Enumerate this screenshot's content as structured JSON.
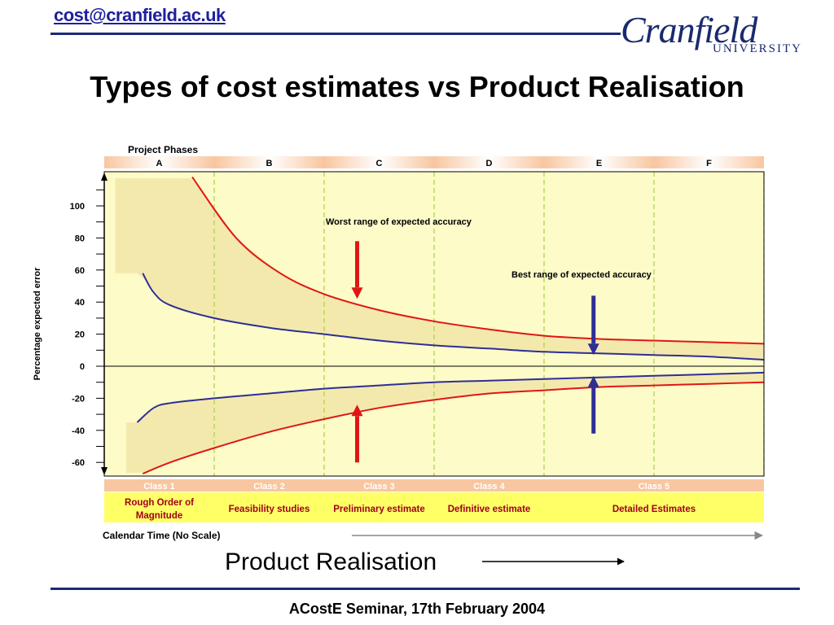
{
  "header": {
    "email": "cost@cranfield.ac.uk",
    "title": "Types of cost estimates vs Product Realisation",
    "logo_word": "Cranfield",
    "logo_sub": "UNIVERSITY"
  },
  "footer": {
    "text": "ACostE Seminar, 17th February 2004"
  },
  "product_realisation": "Product Realisation",
  "colors": {
    "brand_blue": "#1a2a7a",
    "email_blue": "#1f1f9e",
    "plot_bg": "#fdfbc8",
    "band": "#f4e9ad",
    "worst": "#e01616",
    "best": "#2e2e96",
    "phase_bar": "#f8c6a0",
    "class_bar": "#f8c6a0",
    "class_label_red": "#a0001a"
  },
  "chart_data": {
    "type": "line",
    "phases_title": "Project Phases",
    "phases": [
      "A",
      "B",
      "C",
      "D",
      "E",
      "F"
    ],
    "ylabel": "Percentage expected error",
    "xlabel": "Calendar Time (No Scale)",
    "yticks": [
      100,
      80,
      60,
      40,
      20,
      0,
      -20,
      -40,
      -60
    ],
    "ylim": [
      -68,
      118
    ],
    "xlim": [
      0,
      6
    ],
    "grid": false,
    "series": [
      {
        "name": "Worst range of expected accuracy",
        "bound": "upper",
        "x": [
          0.8,
          1.2,
          1.6,
          2.0,
          2.5,
          3.0,
          3.5,
          4.0,
          4.5,
          5.0,
          5.5,
          6.0
        ],
        "y": [
          118,
          80,
          58,
          45,
          35,
          28,
          23,
          19,
          17,
          16,
          15,
          14
        ]
      },
      {
        "name": "Worst range of expected accuracy",
        "bound": "lower",
        "x": [
          0.35,
          0.6,
          1.0,
          1.5,
          2.0,
          2.5,
          3.0,
          3.5,
          4.0,
          4.5,
          5.0,
          5.5,
          6.0
        ],
        "y": [
          -67,
          -60,
          -51,
          -41,
          -33,
          -26,
          -21,
          -17,
          -15,
          -13,
          -12,
          -11,
          -10
        ]
      },
      {
        "name": "Best range of expected accuracy",
        "bound": "upper",
        "x": [
          0.35,
          0.45,
          0.6,
          1.0,
          1.5,
          2.0,
          2.5,
          3.0,
          3.5,
          4.0,
          4.5,
          5.0,
          5.5,
          6.0
        ],
        "y": [
          58,
          46,
          38,
          30,
          24,
          20,
          16,
          13,
          11,
          9,
          8,
          7,
          6,
          4
        ]
      },
      {
        "name": "Best range of expected accuracy",
        "bound": "lower",
        "x": [
          0.3,
          0.45,
          0.6,
          1.0,
          1.5,
          2.0,
          2.5,
          3.0,
          3.5,
          4.0,
          4.5,
          5.0,
          5.5,
          6.0
        ],
        "y": [
          -35,
          -26,
          -23,
          -20,
          -17,
          -14,
          -12,
          -10,
          -9,
          -8,
          -7,
          -6,
          -5,
          -4
        ]
      }
    ],
    "annotations": [
      {
        "text": "Worst range of expected accuracy"
      },
      {
        "text": "Best range of expected accuracy"
      }
    ],
    "arrows": [
      {
        "series": "worst",
        "x": 2.3,
        "from": 78,
        "to": 42
      },
      {
        "series": "worst",
        "x": 2.3,
        "from": -60,
        "to": -24
      },
      {
        "series": "best",
        "x": 4.45,
        "from": 44,
        "to": 7
      },
      {
        "series": "best",
        "x": 4.45,
        "from": -42,
        "to": -6
      }
    ],
    "classes": [
      {
        "label": "Class 1",
        "desc": "Rough Order of Magnitude",
        "start": 0,
        "end": 1
      },
      {
        "label": "Class 2",
        "desc": "Feasibility studies",
        "start": 1,
        "end": 2
      },
      {
        "label": "Class 3",
        "desc": "Preliminary estimate",
        "start": 2,
        "end": 3
      },
      {
        "label": "Class 4",
        "desc": "Definitive estimate",
        "start": 3,
        "end": 4
      },
      {
        "label": "Class 5",
        "desc": "Detailed Estimates",
        "start": 4,
        "end": 6
      }
    ]
  }
}
